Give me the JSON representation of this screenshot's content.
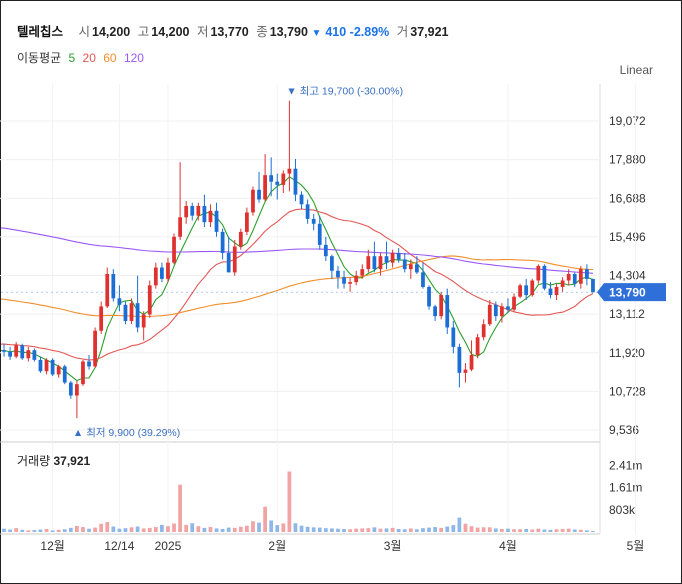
{
  "header": {
    "name": "텔레칩스",
    "open_label": "시",
    "open": "14,200",
    "high_label": "고",
    "high": "14,200",
    "low_label": "저",
    "low": "13,770",
    "close_label": "종",
    "close": "13,790",
    "change": "410 -2.89%",
    "volume_label": "거",
    "volume": "37,921"
  },
  "ma_legend": {
    "label": "이동평균",
    "p5": "5",
    "p20": "20",
    "p60": "60",
    "p120": "120"
  },
  "scale_mode": "Linear",
  "volume_legend": {
    "label": "거래량",
    "value": "37,921"
  },
  "annotations": {
    "high": "최고 19,700 (-30.00%)",
    "low": "최저 9,900 (39.29%)"
  },
  "current_price_label": "13,790",
  "colors": {
    "up": "#e03131",
    "down": "#1c6ed5",
    "ma5": "#2ca02c",
    "ma20": "#e45756",
    "ma60": "#f28e2b",
    "ma120": "#9b59f6",
    "price_tag": "#2e6fd8"
  },
  "chart_data": {
    "type": "candlestick",
    "price_axis": {
      "ticks": [
        "19,072",
        "17,880",
        "16,688",
        "15,496",
        "14,304",
        "13,112",
        "11,920",
        "10,728",
        "9,536"
      ],
      "ylim": [
        9536,
        20000
      ]
    },
    "volume_axis": {
      "ticks": [
        "2.41m",
        "1.61m",
        "803k"
      ],
      "ylim": [
        0,
        3200000
      ]
    },
    "x_labels": [
      "12월",
      "12/14",
      "2025",
      "2월",
      "3월",
      "4월",
      "5월"
    ],
    "x_label_index": [
      8,
      19,
      27,
      45,
      64,
      83,
      104
    ],
    "ohlc": [
      [
        12000,
        12200,
        11800,
        11950
      ],
      [
        11950,
        12100,
        11700,
        11800
      ],
      [
        11800,
        12250,
        11750,
        12150
      ],
      [
        12150,
        12200,
        11700,
        11750
      ],
      [
        11750,
        12100,
        11650,
        12000
      ],
      [
        12000,
        12050,
        11650,
        11700
      ],
      [
        11700,
        11800,
        11300,
        11350
      ],
      [
        11350,
        11750,
        11250,
        11700
      ],
      [
        11700,
        11750,
        11200,
        11250
      ],
      [
        11250,
        11550,
        11150,
        11500
      ],
      [
        11500,
        11550,
        10950,
        11000
      ],
      [
        11000,
        11050,
        10500,
        10600
      ],
      [
        10600,
        11050,
        9900,
        10950
      ],
      [
        10950,
        11700,
        10900,
        11650
      ],
      [
        11650,
        11850,
        11400,
        11500
      ],
      [
        11500,
        12700,
        11450,
        12600
      ],
      [
        12600,
        13500,
        12500,
        13350
      ],
      [
        13350,
        14550,
        13300,
        14350
      ],
      [
        14350,
        14500,
        13500,
        13600
      ],
      [
        13600,
        14000,
        13200,
        13400
      ],
      [
        13400,
        13500,
        12800,
        12900
      ],
      [
        12900,
        13600,
        12800,
        13450
      ],
      [
        13450,
        14300,
        12550,
        12700
      ],
      [
        12700,
        13200,
        12300,
        13100
      ],
      [
        13100,
        14150,
        13000,
        14000
      ],
      [
        14000,
        14700,
        13900,
        14550
      ],
      [
        14550,
        14700,
        14100,
        14200
      ],
      [
        14200,
        14850,
        14100,
        14700
      ],
      [
        14700,
        15600,
        14650,
        15500
      ],
      [
        15500,
        17800,
        15400,
        16100
      ],
      [
        16100,
        16600,
        15900,
        16450
      ],
      [
        16450,
        16550,
        16000,
        16150
      ],
      [
        16150,
        16550,
        16000,
        16450
      ],
      [
        16450,
        16800,
        15800,
        15950
      ],
      [
        15950,
        16500,
        15800,
        16300
      ],
      [
        16300,
        16550,
        15500,
        15650
      ],
      [
        15650,
        15750,
        14800,
        15000
      ],
      [
        15000,
        15500,
        14400,
        14400
      ],
      [
        14400,
        15400,
        14300,
        15200
      ],
      [
        15200,
        15750,
        15100,
        15650
      ],
      [
        15650,
        16400,
        15550,
        16250
      ],
      [
        16250,
        17050,
        16150,
        16950
      ],
      [
        16950,
        17500,
        16550,
        16650
      ],
      [
        16650,
        18050,
        16600,
        17400
      ],
      [
        17400,
        17950,
        16750,
        17200
      ],
      [
        17200,
        17450,
        16650,
        17100
      ],
      [
        17100,
        17550,
        16850,
        17450
      ],
      [
        17450,
        19700,
        16900,
        17600
      ],
      [
        17600,
        17900,
        16600,
        16800
      ],
      [
        16800,
        16900,
        16350,
        16500
      ],
      [
        16500,
        16650,
        15900,
        16050
      ],
      [
        16050,
        16200,
        15700,
        15900
      ],
      [
        15900,
        16150,
        15100,
        15250
      ],
      [
        15250,
        15500,
        14750,
        14900
      ],
      [
        14900,
        14950,
        14200,
        14450
      ],
      [
        14450,
        14600,
        13900,
        14250
      ],
      [
        14250,
        14450,
        13900,
        14050
      ],
      [
        14050,
        14250,
        13800,
        14100
      ],
      [
        14100,
        14450,
        14000,
        14300
      ],
      [
        14300,
        14650,
        14200,
        14500
      ],
      [
        14500,
        15100,
        14400,
        14900
      ],
      [
        14900,
        15350,
        14400,
        14500
      ],
      [
        14500,
        15000,
        14300,
        14900
      ],
      [
        14900,
        15350,
        14500,
        14700
      ],
      [
        14700,
        15100,
        14550,
        15000
      ],
      [
        15000,
        15150,
        14700,
        14800
      ],
      [
        14800,
        15000,
        14400,
        14500
      ],
      [
        14500,
        14800,
        14200,
        14650
      ],
      [
        14650,
        14900,
        14350,
        14400
      ],
      [
        14400,
        14700,
        13900,
        13950
      ],
      [
        13950,
        14000,
        13250,
        13350
      ],
      [
        13350,
        13400,
        12900,
        13050
      ],
      [
        13050,
        13800,
        12950,
        13700
      ],
      [
        13700,
        13900,
        12500,
        12700
      ],
      [
        12700,
        12900,
        11900,
        12100
      ],
      [
        12100,
        12200,
        10850,
        11300
      ],
      [
        11300,
        11600,
        11000,
        11400
      ],
      [
        11400,
        12300,
        11350,
        11850
      ],
      [
        11850,
        12500,
        11750,
        12400
      ],
      [
        12400,
        12950,
        12300,
        12800
      ],
      [
        12800,
        13550,
        12750,
        13400
      ],
      [
        13400,
        13500,
        12900,
        13050
      ],
      [
        13050,
        13450,
        12850,
        13350
      ],
      [
        13350,
        13600,
        13150,
        13250
      ],
      [
        13250,
        13750,
        13200,
        13650
      ],
      [
        13650,
        14050,
        13600,
        14000
      ],
      [
        14000,
        14200,
        13550,
        13700
      ],
      [
        13700,
        14200,
        13650,
        14150
      ],
      [
        14150,
        14650,
        14050,
        14600
      ],
      [
        14600,
        14650,
        13850,
        13900
      ],
      [
        13900,
        14100,
        13600,
        13700
      ],
      [
        13700,
        14050,
        13550,
        13950
      ],
      [
        13950,
        14250,
        13800,
        14150
      ],
      [
        14150,
        14500,
        14000,
        14350
      ],
      [
        14350,
        14400,
        13950,
        14050
      ],
      [
        14050,
        14600,
        13900,
        14500
      ],
      [
        14500,
        14650,
        14000,
        14200
      ],
      [
        14200,
        14200,
        13770,
        13790
      ]
    ],
    "volume": [
      120000,
      90000,
      140000,
      80000,
      60000,
      70000,
      90000,
      110000,
      60000,
      80000,
      100000,
      150000,
      220000,
      180000,
      120000,
      160000,
      300000,
      360000,
      200000,
      120000,
      140000,
      170000,
      200000,
      130000,
      150000,
      180000,
      260000,
      210000,
      310000,
      1720000,
      260000,
      320000,
      210000,
      150000,
      180000,
      130000,
      110000,
      160000,
      150000,
      190000,
      230000,
      390000,
      340000,
      920000,
      420000,
      250000,
      310000,
      2200000,
      320000,
      230000,
      190000,
      170000,
      160000,
      140000,
      130000,
      120000,
      110000,
      100000,
      120000,
      130000,
      140000,
      170000,
      120000,
      130000,
      150000,
      110000,
      100000,
      130000,
      100000,
      140000,
      160000,
      180000,
      150000,
      200000,
      250000,
      520000,
      300000,
      210000,
      160000,
      170000,
      170000,
      130000,
      110000,
      120000,
      100000,
      100000,
      110000,
      90000,
      120000,
      90000,
      80000,
      100000,
      110000,
      120000,
      90000,
      80000,
      60000,
      37921
    ]
  }
}
